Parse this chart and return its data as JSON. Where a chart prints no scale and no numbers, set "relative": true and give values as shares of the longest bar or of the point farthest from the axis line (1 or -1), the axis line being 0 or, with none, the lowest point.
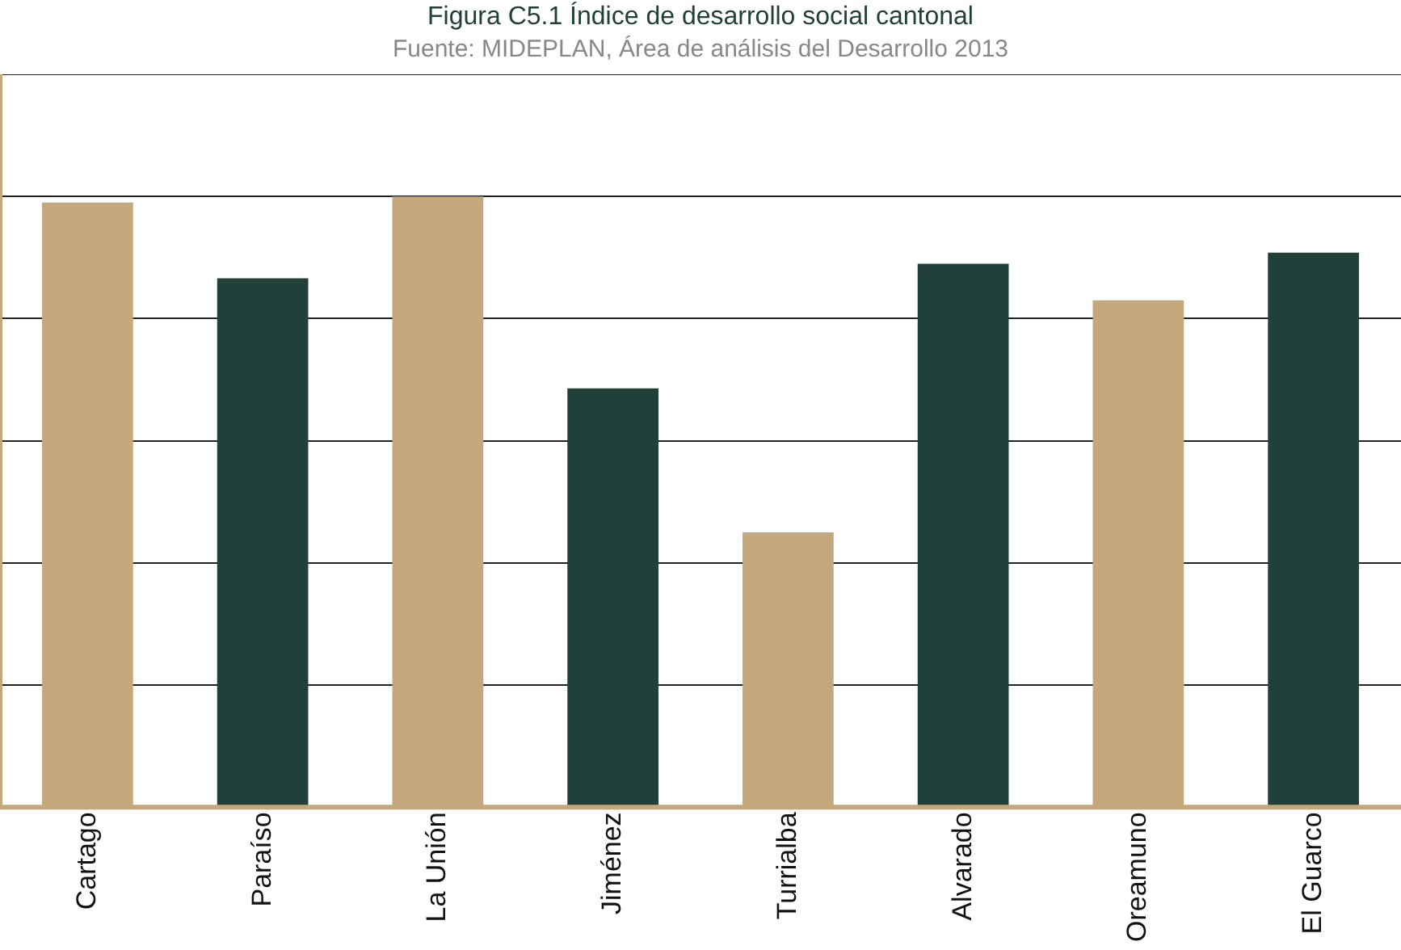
{
  "chart_data": {
    "type": "bar",
    "title": "Figura C5.1 Índice de desarrollo social cantonal",
    "subtitle": "Fuente: MIDEPLAN, Área de análisis del Desarrollo 2013",
    "categories": [
      "Cartago",
      "Paraíso",
      "La Unión",
      "Jiménez",
      "Turrialba",
      "Alvarado",
      "Oreamuno",
      "El Guarco"
    ],
    "values": [
      0.99,
      0.866,
      1,
      0.686,
      0.45,
      0.89,
      0.83,
      0.908
    ],
    "colors": [
      "#c4a77a",
      "#21403a",
      "#c4a77a",
      "#21403a",
      "#c4a77a",
      "#21403a",
      "#c4a77a",
      "#21403a"
    ],
    "relative": true,
    "grid": "y",
    "legend": false
  }
}
